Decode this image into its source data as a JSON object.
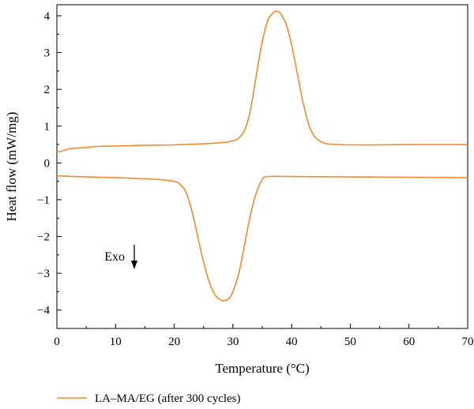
{
  "chart_data": {
    "type": "line",
    "xlabel": "Temperature (°C)",
    "ylabel": "Heat flow (mW/mg)",
    "xlim": [
      0,
      70
    ],
    "ylim": [
      -4.5,
      4.3
    ],
    "xticks": [
      0,
      10,
      20,
      30,
      40,
      50,
      60,
      70
    ],
    "yticks": [
      -4,
      -3,
      -2,
      -1,
      0,
      1,
      2,
      3,
      4
    ],
    "grid": false,
    "legend_position": "bottom-left",
    "line_color": "#f28a2c",
    "annotation": {
      "text": "Exo",
      "arrow": "down",
      "x": 13.3,
      "y": -2.55
    },
    "series": [
      {
        "name": "LA–MA/EG (after 300 cycles)",
        "segments": [
          {
            "x": [
              0,
              0.5,
              1,
              2,
              3,
              5,
              7,
              10,
              15,
              20,
              25,
              28,
              30,
              31,
              32,
              33,
              34,
              35,
              36,
              37,
              37.5,
              38,
              39,
              40,
              41,
              42,
              43,
              44,
              45,
              46,
              48,
              50,
              55,
              60,
              65,
              70
            ],
            "y": [
              0.31,
              0.31,
              0.33,
              0.38,
              0.4,
              0.42,
              0.45,
              0.46,
              0.48,
              0.49,
              0.52,
              0.55,
              0.6,
              0.68,
              0.9,
              1.45,
              2.4,
              3.3,
              3.9,
              4.1,
              4.12,
              4.08,
              3.8,
              3.2,
              2.4,
              1.6,
              1.0,
              0.7,
              0.58,
              0.52,
              0.5,
              0.49,
              0.49,
              0.5,
              0.5,
              0.5
            ]
          },
          {
            "x": [
              0,
              5,
              10,
              15,
              18,
              20,
              21,
              22,
              23,
              24,
              25,
              26,
              27,
              28,
              28.5,
              29,
              29.5,
              30,
              31,
              32,
              33,
              34,
              35,
              36,
              40,
              50,
              60,
              70
            ],
            "y": [
              -0.35,
              -0.38,
              -0.4,
              -0.43,
              -0.46,
              -0.5,
              -0.58,
              -0.8,
              -1.3,
              -2.0,
              -2.7,
              -3.25,
              -3.6,
              -3.73,
              -3.74,
              -3.72,
              -3.65,
              -3.5,
              -3.0,
              -2.2,
              -1.4,
              -0.8,
              -0.45,
              -0.37,
              -0.37,
              -0.38,
              -0.39,
              -0.4
            ]
          }
        ]
      }
    ]
  }
}
